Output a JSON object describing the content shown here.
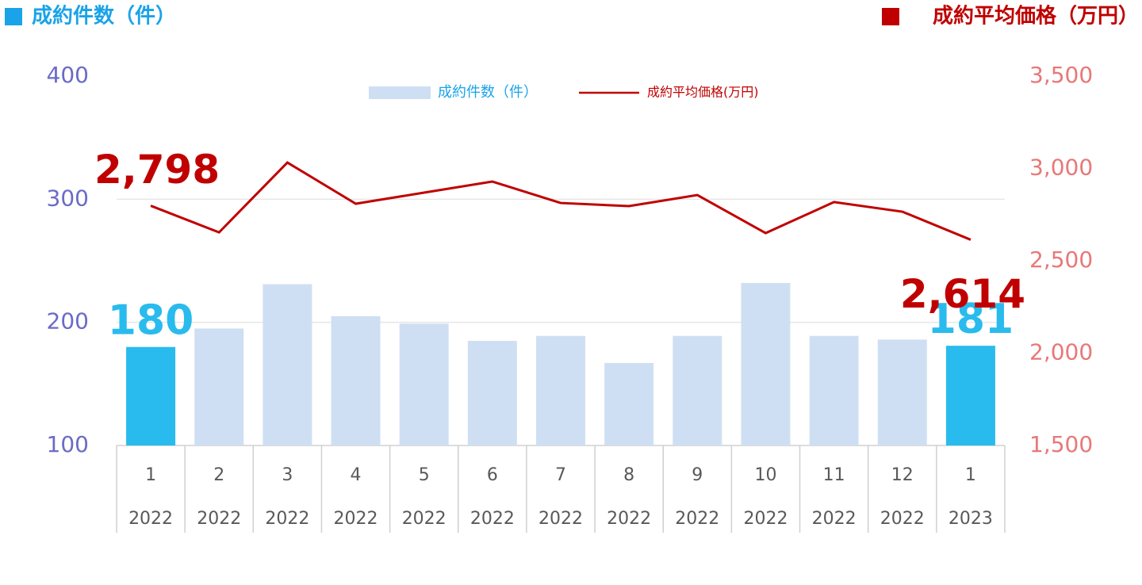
{
  "chart_data": {
    "type": "bar_line",
    "y_axis_label": "成約件数（件）",
    "y2_axis_label": "成約平均価格（万円）",
    "categories": [
      [
        "1",
        "2022"
      ],
      [
        "2",
        "2022"
      ],
      [
        "3",
        "2022"
      ],
      [
        "4",
        "2022"
      ],
      [
        "5",
        "2022"
      ],
      [
        "6",
        "2022"
      ],
      [
        "7",
        "2022"
      ],
      [
        "8",
        "2022"
      ],
      [
        "9",
        "2022"
      ],
      [
        "10",
        "2022"
      ],
      [
        "11",
        "2022"
      ],
      [
        "12",
        "2022"
      ],
      [
        "1",
        "2023"
      ]
    ],
    "ylim": [
      100,
      400
    ],
    "yticks": [
      100,
      200,
      300,
      400
    ],
    "y2lim": [
      1500,
      3500
    ],
    "y2ticks": [
      {
        "value": 1500,
        "label": "1,500"
      },
      {
        "value": 2000,
        "label": "2,000"
      },
      {
        "value": 2500,
        "label": "2,500"
      },
      {
        "value": 3000,
        "label": "3,000"
      },
      {
        "value": 3500,
        "label": "3,500"
      }
    ],
    "grid": true,
    "legend": "top",
    "series": [
      {
        "name": "成約件数（件）",
        "type": "bar",
        "color": "#cfdff3",
        "colors": [
          "#29bbed",
          "#cfdff3",
          "#cfdff3",
          "#cfdff3",
          "#cfdff3",
          "#cfdff3",
          "#cfdff3",
          "#cfdff3",
          "#cfdff3",
          "#cfdff3",
          "#cfdff3",
          "#cfdff3",
          "#29bbed"
        ],
        "values": [
          180,
          195,
          231,
          205,
          199,
          185,
          189,
          167,
          189,
          232,
          189,
          186,
          181
        ],
        "labeled": [
          0,
          12
        ]
      },
      {
        "name": "成約平均価格(万円)",
        "type": "line",
        "axis": "y2",
        "color": "#c00000",
        "values": [
          2798,
          2654,
          3032,
          2809,
          2869,
          2929,
          2813,
          2796,
          2856,
          2650,
          2818,
          2766,
          2614
        ],
        "value_labels": [
          "2,798",
          null,
          null,
          null,
          null,
          null,
          null,
          null,
          null,
          null,
          null,
          null,
          "2,614"
        ]
      }
    ]
  }
}
